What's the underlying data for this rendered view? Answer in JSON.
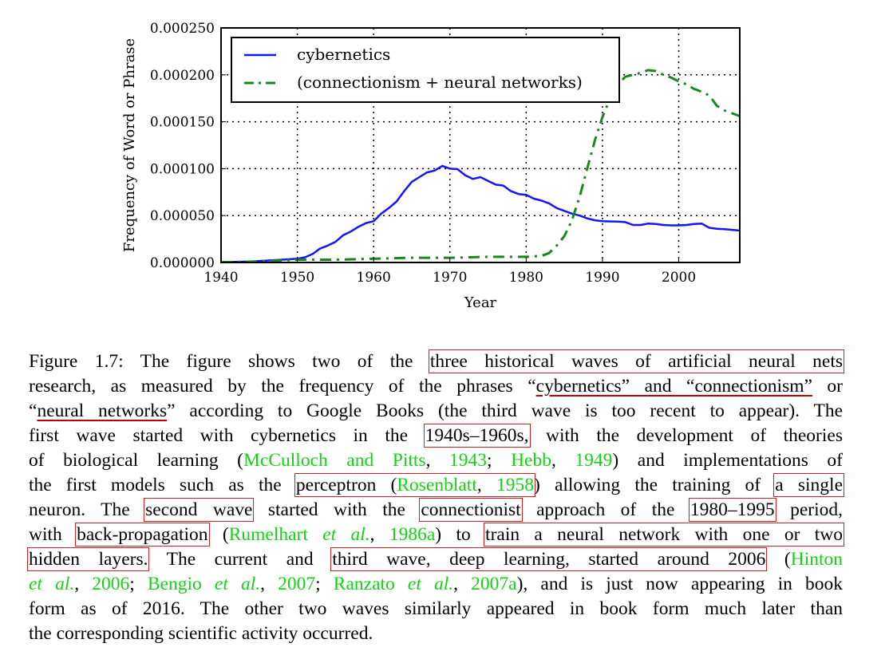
{
  "chart_data": {
    "type": "line",
    "xlabel": "Year",
    "ylabel": "Frequency of Word or Phrase",
    "xlim": [
      1940,
      2008
    ],
    "ylim": [
      0,
      0.00025
    ],
    "grid": true,
    "legend_position": "top-left",
    "x_ticks": [
      "1940",
      "1950",
      "1960",
      "1970",
      "1980",
      "1990",
      "2000"
    ],
    "y_ticks": [
      "0.000000",
      "0.000050",
      "0.000100",
      "0.000150",
      "0.000200",
      "0.000250"
    ],
    "series": [
      {
        "name": "cybernetics",
        "color": "#1414ff",
        "style": "solid",
        "points": [
          [
            1940,
            5e-07
          ],
          [
            1942,
            6e-07
          ],
          [
            1944,
            1e-06
          ],
          [
            1946,
            2e-06
          ],
          [
            1948,
            3e-06
          ],
          [
            1950,
            4e-06
          ],
          [
            1951,
            5.5e-06
          ],
          [
            1952,
            9e-06
          ],
          [
            1953,
            1.5e-05
          ],
          [
            1954,
            1.8e-05
          ],
          [
            1955,
            2.2e-05
          ],
          [
            1956,
            2.9e-05
          ],
          [
            1957,
            3.3e-05
          ],
          [
            1958,
            3.8e-05
          ],
          [
            1959,
            4.2e-05
          ],
          [
            1960,
            4.4e-05
          ],
          [
            1961,
            5.2e-05
          ],
          [
            1962,
            5.8e-05
          ],
          [
            1963,
            6.5e-05
          ],
          [
            1964,
            7.6e-05
          ],
          [
            1965,
            8.6e-05
          ],
          [
            1966,
            9.1e-05
          ],
          [
            1967,
            9.6e-05
          ],
          [
            1968,
            9.8e-05
          ],
          [
            1969,
            0.000103
          ],
          [
            1970,
            0.0001
          ],
          [
            1971,
            9.95e-05
          ],
          [
            1972,
            9.3e-05
          ],
          [
            1973,
            8.9e-05
          ],
          [
            1974,
            9.1e-05
          ],
          [
            1975,
            8.7e-05
          ],
          [
            1976,
            8.3e-05
          ],
          [
            1977,
            8.2e-05
          ],
          [
            1978,
            7.6e-05
          ],
          [
            1979,
            7.3e-05
          ],
          [
            1980,
            7.2e-05
          ],
          [
            1981,
            6.8e-05
          ],
          [
            1982,
            6.6e-05
          ],
          [
            1983,
            6.3e-05
          ],
          [
            1984,
            5.8e-05
          ],
          [
            1985,
            5.5e-05
          ],
          [
            1986,
            5.2e-05
          ],
          [
            1987,
            5e-05
          ],
          [
            1988,
            4.7e-05
          ],
          [
            1989,
            4.5e-05
          ],
          [
            1990,
            4.4e-05
          ],
          [
            1992,
            4.35e-05
          ],
          [
            1993,
            4.3e-05
          ],
          [
            1994,
            4e-05
          ],
          [
            1995,
            4e-05
          ],
          [
            1996,
            4.15e-05
          ],
          [
            1997,
            4.1e-05
          ],
          [
            1998,
            4e-05
          ],
          [
            1999,
            3.95e-05
          ],
          [
            2000,
            3.95e-05
          ],
          [
            2001,
            4e-05
          ],
          [
            2002,
            4.1e-05
          ],
          [
            2003,
            4.15e-05
          ],
          [
            2004,
            3.7e-05
          ],
          [
            2005,
            3.6e-05
          ],
          [
            2006,
            3.55e-05
          ],
          [
            2008,
            3.4e-05
          ]
        ]
      },
      {
        "name": "(connectionism + neural networks)",
        "color": "#15891a",
        "style": "dashdot",
        "points": [
          [
            1940,
            3e-07
          ],
          [
            1945,
            1e-06
          ],
          [
            1950,
            3e-06
          ],
          [
            1955,
            3e-06
          ],
          [
            1960,
            4e-06
          ],
          [
            1965,
            5e-06
          ],
          [
            1970,
            5e-06
          ],
          [
            1975,
            6e-06
          ],
          [
            1980,
            6e-06
          ],
          [
            1982,
            7e-06
          ],
          [
            1983,
            1e-05
          ],
          [
            1984,
            1.8e-05
          ],
          [
            1985,
            2.8e-05
          ],
          [
            1986,
            4.5e-05
          ],
          [
            1987,
            7e-05
          ],
          [
            1988,
            0.0001
          ],
          [
            1989,
            0.00013
          ],
          [
            1990,
            0.000155
          ],
          [
            1991,
            0.000175
          ],
          [
            1992,
            0.00019
          ],
          [
            1993,
            0.000198
          ],
          [
            1994,
            0.0002
          ],
          [
            1995,
            0.000202
          ],
          [
            1996,
            0.000205
          ],
          [
            1997,
            0.000204
          ],
          [
            1998,
            0.0002
          ],
          [
            1999,
            0.000197
          ],
          [
            2000,
            0.000193
          ],
          [
            2001,
            0.00019
          ],
          [
            2002,
            0.000185
          ],
          [
            2003,
            0.000182
          ],
          [
            2004,
            0.000178
          ],
          [
            2005,
            0.000167
          ],
          [
            2006,
            0.000162
          ],
          [
            2007,
            0.000159
          ],
          [
            2008,
            0.000156
          ]
        ]
      }
    ]
  },
  "caption": {
    "l1a": "Figure 1.7: The figure shows two of the ",
    "l1b": "three historical waves of artificial neural nets",
    "l2a": "research, as measured by the frequency of the phrases “",
    "l2b": "cybernetics” and “connectionism”",
    "l2c": " or",
    "l3a": "“",
    "l3b": "neural networks",
    "l3c": "” according to Google Books (the third wave is too recent to appear). The",
    "l4a": "first wave started with cybernetics in the ",
    "l4b": "1940s–1960s,",
    "l4c": " with the development of theories",
    "l5a": "of biological learning (",
    "l5b": "McCulloch and Pitts",
    "l5c": ", ",
    "l5d": "1943",
    "l5e": "; ",
    "l5f": "Hebb",
    "l5g": ", ",
    "l5h": "1949",
    "l5i": ") and implementations of",
    "l6a": "the first models such as the ",
    "l6b": "perceptron (",
    "l6c": "Rosenblatt",
    "l6d": ", ",
    "l6e": "1958",
    "l6f": ")",
    "l6g": " allowing the training of ",
    "l6h": "a single",
    "l7a": "neuron. The ",
    "l7b": "second wave",
    "l7c": " started with the ",
    "l7d": "connectionist",
    "l7e": " approach of the ",
    "l7f": "1980–1995",
    "l7g": " period,",
    "l8a": "with ",
    "l8b": "back-propagation",
    "l8c": " (",
    "l8d": "Rumelhart ",
    "l8e": "et al.",
    "l8f": ", ",
    "l8g": "1986a",
    "l8h": ") to ",
    "l8i": "train a neural network with one or two",
    "l9a": "hidden layers.",
    "l9b": " The current and ",
    "l9c": "third wave, deep learning, started around 2006",
    "l9d": " (",
    "l9e": "Hinton",
    "l10a": "et al.",
    "l10b": ", ",
    "l10c": "2006",
    "l10d": "; ",
    "l10e": "Bengio ",
    "l10f": "et al.",
    "l10g": ", ",
    "l10h": "2007",
    "l10i": "; ",
    "l10j": "Ranzato ",
    "l10k": "et al.",
    "l10l": ", ",
    "l10m": "2007a",
    "l10n": "), and is just now appearing in book",
    "l11": "form as of 2016. The other two waves similarly appeared in book form much later than",
    "l12": "the corresponding scientific activity occurred."
  }
}
